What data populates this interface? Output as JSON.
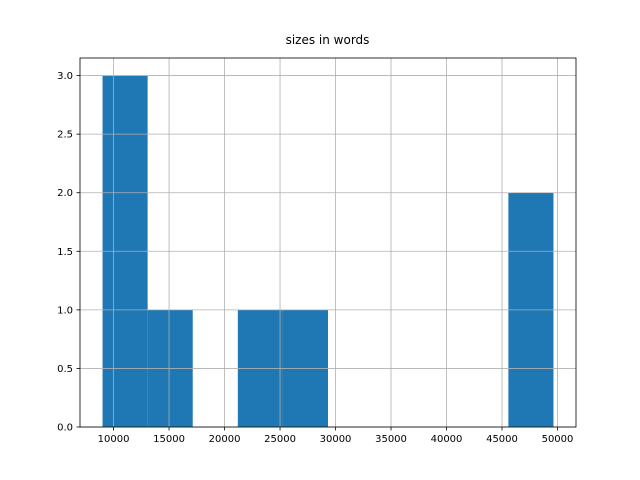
{
  "chart_data": {
    "type": "histogram",
    "title": "sizes in words",
    "bins": [
      9007,
      13070,
      17133,
      21196,
      25259,
      29322,
      33385,
      37448,
      41511,
      45574,
      49637
    ],
    "counts": [
      3,
      1,
      0,
      1,
      1,
      0,
      0,
      0,
      0,
      2
    ],
    "color": "#1f77b4",
    "xlim": [
      6976,
      51668
    ],
    "xticks": [
      10000,
      15000,
      20000,
      25000,
      30000,
      35000,
      40000,
      45000,
      50000
    ],
    "ylim": [
      0,
      3.15
    ],
    "yticks": [
      {
        "value": 0,
        "label": "0.0"
      },
      {
        "value": 0.5,
        "label": "0.5"
      },
      {
        "value": 1,
        "label": "1.0"
      },
      {
        "value": 1.5,
        "label": "1.5"
      },
      {
        "value": 2,
        "label": "2.0"
      },
      {
        "value": 2.5,
        "label": "2.5"
      },
      {
        "value": 3,
        "label": "3.0"
      }
    ],
    "grid": true
  }
}
